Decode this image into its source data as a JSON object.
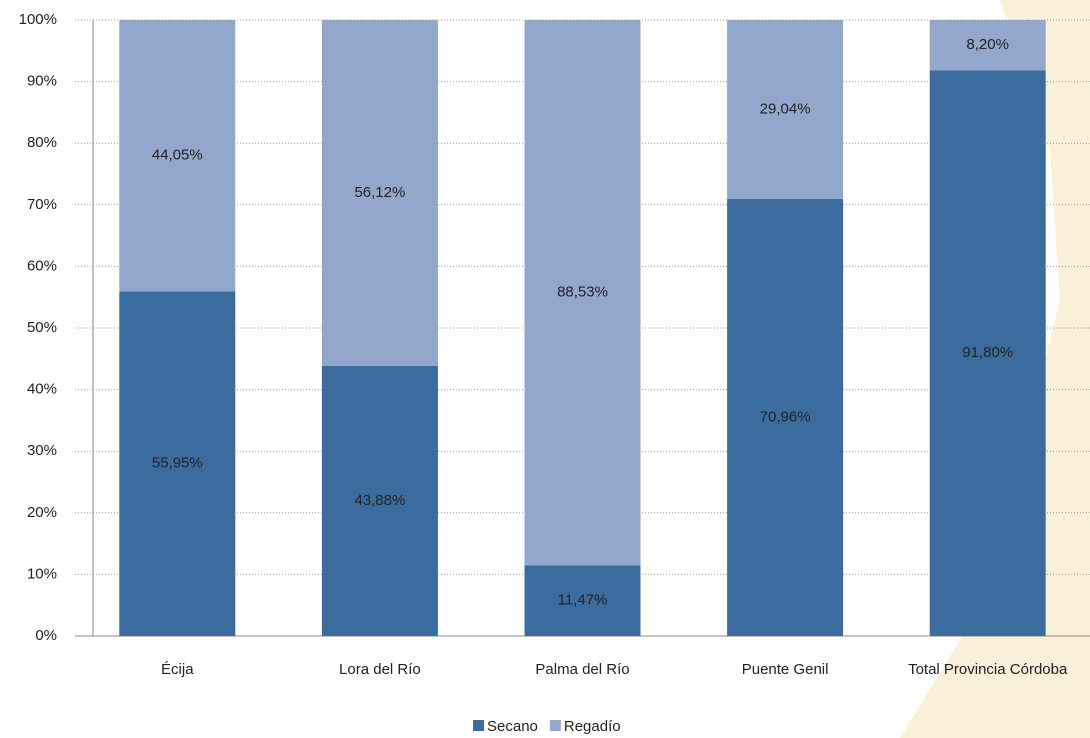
{
  "chart_data": {
    "type": "stacked_bar_percent",
    "categories": [
      "Écija",
      "Lora del Río",
      "Palma del Río",
      "Puente Genil",
      "Total Provincia Córdoba"
    ],
    "series": [
      {
        "name": "Secano",
        "color": "#3b6c9e",
        "values": [
          55.95,
          43.88,
          11.47,
          70.96,
          91.8
        ],
        "value_labels": [
          "55,95%",
          "43,88%",
          "11,47%",
          "70,96%",
          "91,80%"
        ]
      },
      {
        "name": "Regadío",
        "color": "#93a7cc",
        "values": [
          44.05,
          56.12,
          88.53,
          29.04,
          8.2
        ],
        "value_labels": [
          "44,05%",
          "56,12%",
          "88,53%",
          "29,04%",
          "8,20%"
        ]
      }
    ],
    "ylim": [
      0,
      100
    ],
    "yticks": [
      {
        "value": 0,
        "label": "0%"
      },
      {
        "value": 10,
        "label": "10%"
      },
      {
        "value": 20,
        "label": "20%"
      },
      {
        "value": 30,
        "label": "30%"
      },
      {
        "value": 40,
        "label": "40%"
      },
      {
        "value": 50,
        "label": "50%"
      },
      {
        "value": 60,
        "label": "60%"
      },
      {
        "value": 70,
        "label": "70%"
      },
      {
        "value": 80,
        "label": "80%"
      },
      {
        "value": 90,
        "label": "90%"
      },
      {
        "value": 100,
        "label": "100%"
      }
    ],
    "grid": true,
    "legend": "bottom"
  }
}
